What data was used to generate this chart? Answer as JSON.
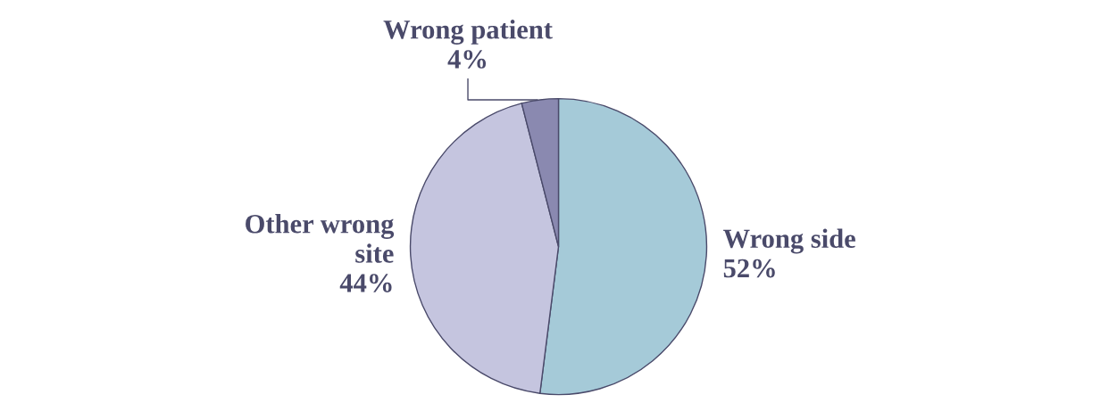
{
  "chart_data": {
    "type": "pie",
    "categories": [
      "Wrong side",
      "Other wrong\nsite",
      "Wrong patient"
    ],
    "values": [
      52,
      44,
      4
    ],
    "colors": [
      "#a5cad8",
      "#c5c5df",
      "#8a89b0"
    ],
    "value_labels": [
      "52%",
      "44%",
      "4%"
    ]
  }
}
